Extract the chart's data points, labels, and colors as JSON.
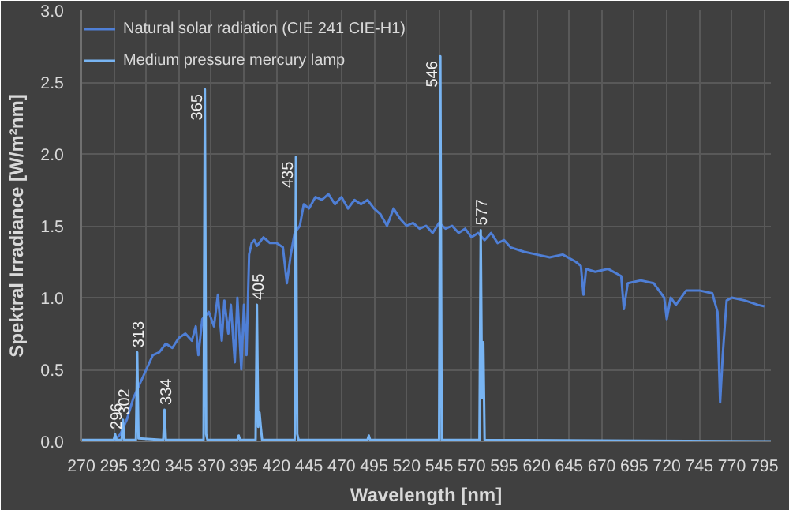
{
  "chart_data": {
    "type": "line",
    "xlabel": "Wavelength [nm]",
    "ylabel": "Spektral Irradiance [W/m²nm]",
    "xlim": [
      270,
      800
    ],
    "ylim": [
      0,
      3
    ],
    "xticks": [
      270,
      295,
      320,
      345,
      370,
      395,
      420,
      445,
      470,
      495,
      520,
      545,
      570,
      595,
      620,
      645,
      670,
      695,
      720,
      745,
      770,
      795
    ],
    "yticks": [
      {
        "value": 0,
        "label": "0.0"
      },
      {
        "value": 0.5,
        "label": "0.5"
      },
      {
        "value": 1,
        "label": "1.0"
      },
      {
        "value": 1.5,
        "label": "1.5"
      },
      {
        "value": 2,
        "label": "2.0"
      },
      {
        "value": 2.5,
        "label": "2.5"
      },
      {
        "value": 3,
        "label": "3.0"
      }
    ],
    "grid": true,
    "legend": "top left",
    "series": [
      {
        "name": "Natural solar radiation (CIE 241 CIE-H1)",
        "color": "#4f7fd6",
        "x": [
          295,
          300,
          305,
          310,
          315,
          320,
          325,
          330,
          335,
          340,
          345,
          350,
          355,
          358,
          360,
          363,
          368,
          372,
          375,
          378,
          380,
          383,
          385,
          388,
          390,
          393,
          395,
          397,
          399,
          401,
          403,
          405,
          410,
          415,
          420,
          425,
          428,
          431,
          434,
          438,
          441,
          445,
          450,
          455,
          460,
          465,
          470,
          475,
          480,
          485,
          490,
          495,
          500,
          505,
          510,
          515,
          520,
          525,
          530,
          535,
          540,
          545,
          550,
          555,
          560,
          565,
          570,
          575,
          580,
          585,
          590,
          595,
          600,
          610,
          620,
          630,
          640,
          650,
          654,
          656,
          658,
          665,
          675,
          685,
          687,
          690,
          700,
          710,
          718,
          720,
          723,
          727,
          735,
          745,
          755,
          759,
          761,
          763,
          766,
          770,
          780,
          790,
          795
        ],
        "values": [
          0,
          0.05,
          0.15,
          0.3,
          0.4,
          0.5,
          0.6,
          0.62,
          0.68,
          0.65,
          0.72,
          0.75,
          0.7,
          0.8,
          0.6,
          0.85,
          0.9,
          0.8,
          1.02,
          0.7,
          0.98,
          0.75,
          0.95,
          0.55,
          1.0,
          0.5,
          0.95,
          0.6,
          1.3,
          1.38,
          1.4,
          1.36,
          1.42,
          1.38,
          1.38,
          1.35,
          1.1,
          1.3,
          1.45,
          1.5,
          1.65,
          1.62,
          1.7,
          1.68,
          1.72,
          1.65,
          1.7,
          1.62,
          1.68,
          1.65,
          1.68,
          1.62,
          1.58,
          1.5,
          1.62,
          1.55,
          1.5,
          1.52,
          1.48,
          1.5,
          1.45,
          1.52,
          1.48,
          1.5,
          1.45,
          1.48,
          1.42,
          1.45,
          1.4,
          1.45,
          1.38,
          1.4,
          1.35,
          1.32,
          1.3,
          1.28,
          1.3,
          1.25,
          1.22,
          1.02,
          1.2,
          1.18,
          1.2,
          1.15,
          0.92,
          1.1,
          1.12,
          1.1,
          1.0,
          0.85,
          1.0,
          0.95,
          1.05,
          1.05,
          1.03,
          0.9,
          0.27,
          0.6,
          0.98,
          1.0,
          0.98,
          0.95,
          0.94
        ]
      },
      {
        "name": "Medium pressure mercury lamp",
        "color": "#78b4f2",
        "x": [
          270,
          295,
          296,
          297,
          301,
          302,
          303,
          312,
          313,
          314,
          333,
          334,
          335,
          364,
          365,
          366,
          367,
          390,
          391,
          392,
          404,
          405,
          406,
          407,
          408,
          409,
          434,
          435,
          436,
          437,
          490,
          491,
          492,
          545,
          546,
          547,
          576,
          577,
          578,
          579,
          580,
          800
        ],
        "values": [
          0.01,
          0.01,
          0.05,
          0.01,
          0.01,
          0.15,
          0.01,
          0.01,
          0.62,
          0.02,
          0.01,
          0.22,
          0.01,
          0.01,
          2.45,
          0.05,
          0.01,
          0.01,
          0.04,
          0.01,
          0.01,
          0.95,
          0.1,
          0.2,
          0.1,
          0.01,
          0.01,
          1.98,
          0.05,
          0.01,
          0.01,
          0.04,
          0.01,
          0.01,
          2.68,
          0.01,
          0.01,
          1.47,
          0.3,
          0.69,
          0.01,
          0.0
        ]
      }
    ],
    "annotations": [
      {
        "text": "296",
        "x": 296,
        "y": 0.05
      },
      {
        "text": "302",
        "x": 302,
        "y": 0.15
      },
      {
        "text": "313",
        "x": 313,
        "y": 0.62
      },
      {
        "text": "334",
        "x": 334,
        "y": 0.22
      },
      {
        "text": "365",
        "x": 365,
        "y": 2.45
      },
      {
        "text": "405",
        "x": 405,
        "y": 0.95
      },
      {
        "text": "435",
        "x": 435,
        "y": 1.98
      },
      {
        "text": "546",
        "x": 546,
        "y": 2.68
      },
      {
        "text": "577",
        "x": 577,
        "y": 1.47
      }
    ]
  }
}
